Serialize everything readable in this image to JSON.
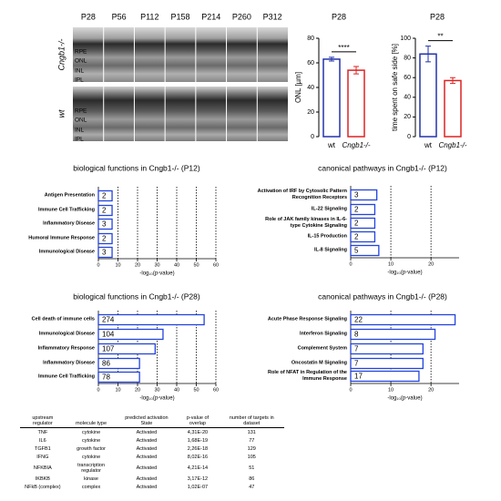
{
  "retina_panel": {
    "timepoints": [
      "P28",
      "P56",
      "P112",
      "P158",
      "P214",
      "P260",
      "P312"
    ],
    "rows": [
      {
        "genotype": "Cngb1-/-",
        "layers": [
          "RPE",
          "ONL",
          "INL",
          "IPL"
        ]
      },
      {
        "genotype": "wt",
        "layers": [
          "RPE",
          "ONL",
          "INL",
          "IPL"
        ]
      }
    ]
  },
  "chart_data": [
    {
      "type": "bar",
      "title": "P28",
      "categories": [
        "wt",
        "Cngb1-/-"
      ],
      "values": [
        63,
        54
      ],
      "errors": [
        1.5,
        3
      ],
      "colors": [
        "#2233aa",
        "#dd2222"
      ],
      "ylabel": "ONL [µm]",
      "ylim": [
        0,
        80
      ],
      "yticks": [
        0,
        20,
        40,
        60,
        80
      ],
      "significance": "****"
    },
    {
      "type": "bar",
      "title": "P28",
      "categories": [
        "wt",
        "Cngb1-/-"
      ],
      "values": [
        84,
        57
      ],
      "errors": [
        8,
        3
      ],
      "colors": [
        "#2233aa",
        "#dd2222"
      ],
      "ylabel": "time spent on safe side [%]",
      "ylim": [
        0,
        100
      ],
      "yticks": [
        0,
        20,
        40,
        60,
        80,
        100
      ],
      "significance": "**"
    },
    {
      "type": "barh",
      "title": "biological functions in Cngb1-/- (P12)",
      "categories": [
        "Antigen Presentation",
        "Immune Cell Trafficking",
        "Inflammatory Disease",
        "Humoral Immune Response",
        "Immunological Disease"
      ],
      "values": [
        7,
        7,
        7,
        7,
        7
      ],
      "counts": [
        2,
        2,
        3,
        2,
        3
      ],
      "color": "#2244dd",
      "xlabel": "-log₁₀(p-value)",
      "xlim": [
        0,
        60
      ],
      "xticks": [
        0,
        10,
        20,
        30,
        40,
        50,
        60
      ],
      "grid": true
    },
    {
      "type": "barh",
      "title": "canonical pathways in Cngb1-/- (P12)",
      "categories": [
        "Activation of IRF by Cytosolic Pattern Recognition Receptors",
        "IL-22 Signaling",
        "Role of JAK family kinases in IL-6-type Cytokine Signaling",
        "IL-15 Production",
        "IL-8 Signaling"
      ],
      "values": [
        6.5,
        6,
        6,
        6,
        7
      ],
      "counts": [
        3,
        2,
        2,
        2,
        5
      ],
      "color": "#2244dd",
      "xlabel": "-log₁₀(p-value)",
      "xlim": [
        0,
        27
      ],
      "xticks": [
        0,
        10,
        20
      ],
      "grid": true
    },
    {
      "type": "barh",
      "title": "biological functions in Cngb1-/- (P28)",
      "categories": [
        "Cell death of immune cells",
        "Immunological Disease",
        "Inflammatory Response",
        "Inflammatory Disease",
        "Immune Cell Trafficking"
      ],
      "values": [
        54,
        33,
        29,
        21,
        21
      ],
      "counts": [
        274,
        104,
        107,
        86,
        78
      ],
      "color": "#2244dd",
      "xlabel": "-log₁₀(p-value)",
      "xlim": [
        0,
        60
      ],
      "xticks": [
        0,
        10,
        20,
        30,
        40,
        50,
        60
      ],
      "grid": true
    },
    {
      "type": "barh",
      "title": "canonical pathways in Cngb1-/- (P28)",
      "categories": [
        "Acute Phase Response Signaling",
        "Interferon Signaling",
        "Complement System",
        "Oncostatin M Signaling",
        "Role of NFAT in Regulation of the Immune Response"
      ],
      "values": [
        26,
        21,
        18,
        18,
        17
      ],
      "counts": [
        22,
        8,
        7,
        7,
        17
      ],
      "color": "#2244dd",
      "xlabel": "-log₁₀(p-value)",
      "xlim": [
        0,
        27
      ],
      "xticks": [
        0,
        10,
        20
      ],
      "grid": true
    }
  ],
  "table": {
    "headers": [
      "upstream regulator",
      "molecule type",
      "predicted activation State",
      "p-value of overlap",
      "number of targets in dataset"
    ],
    "rows": [
      [
        "TNF",
        "cytokine",
        "Activated",
        "4,31E-20",
        "131"
      ],
      [
        "IL6",
        "cytokine",
        "Activated",
        "1,68E-19",
        "77"
      ],
      [
        "TGFB1",
        "growth factor",
        "Activated",
        "2,26E-18",
        "129"
      ],
      [
        "IFNG",
        "cytokine",
        "Activated",
        "8,02E-16",
        "105"
      ],
      [
        "NFKBIA",
        "transcription regulator",
        "Activated",
        "4,21E-14",
        "51"
      ],
      [
        "IKBKB",
        "kinase",
        "Activated",
        "3,17E-12",
        "86"
      ],
      [
        "NFkB (complex)",
        "complex",
        "Activated",
        "1,02E-07",
        "47"
      ]
    ]
  }
}
